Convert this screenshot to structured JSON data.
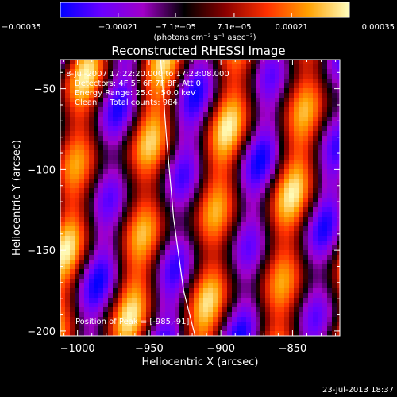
{
  "chart_data": {
    "type": "heatmap",
    "title": "Reconstructed RHESSI Image",
    "xlabel": "Heliocentric X (arcsec)",
    "ylabel": "Heliocentric Y (arcsec)",
    "xlim": [
      -1012,
      -817
    ],
    "ylim": [
      -203,
      -32
    ],
    "x_ticks": [
      {
        "value": -1000,
        "label": "−1000"
      },
      {
        "value": -950,
        "label": "−950"
      },
      {
        "value": -900,
        "label": "−900"
      },
      {
        "value": -850,
        "label": "−850"
      }
    ],
    "y_ticks": [
      {
        "value": -50,
        "label": "−50"
      },
      {
        "value": -100,
        "label": "−100"
      },
      {
        "value": -150,
        "label": "−150"
      },
      {
        "value": -200,
        "label": "−200"
      }
    ],
    "colorbar": {
      "min": -0.00035,
      "max": 0.00035,
      "units": "(photons cm⁻² s⁻¹ asec⁻²)",
      "tick_labels": [
        {
          "value": -0.00035,
          "label": "−0.00035"
        },
        {
          "value": -0.00021,
          "label": "−0.00021"
        },
        {
          "value": -7.1e-05,
          "label": "−7.1e−05"
        },
        {
          "value": 7.1e-05,
          "label": "7.1e−05"
        },
        {
          "value": 0.00021,
          "label": "0.00021"
        },
        {
          "value": 0.00035,
          "label": "0.00035"
        }
      ],
      "colors": [
        "#0000ff",
        "#6a00ff",
        "#a000c8",
        "#000000",
        "#8a0000",
        "#ff3000",
        "#ffa000",
        "#ffffc0"
      ]
    },
    "info_lines": [
      " 8-Jul-2007 17:22:20.000 to 17:23:08.000",
      "Detectors: 4F 5F 6F 7F 8F, Att 0",
      "Energy Range: 25.0 - 50.0 keV",
      "Clean     Total counts: 984."
    ],
    "peak_label": "Position of Peak = [-985,-91]",
    "peak": [
      -985,
      -91
    ],
    "limb_curve": [
      [
        -942,
        -32
      ],
      [
        -938,
        -80
      ],
      [
        -933,
        -130
      ],
      [
        -926,
        -175
      ],
      [
        -918,
        -203
      ]
    ],
    "timestamp": "23-Jul-2013 18:37"
  }
}
